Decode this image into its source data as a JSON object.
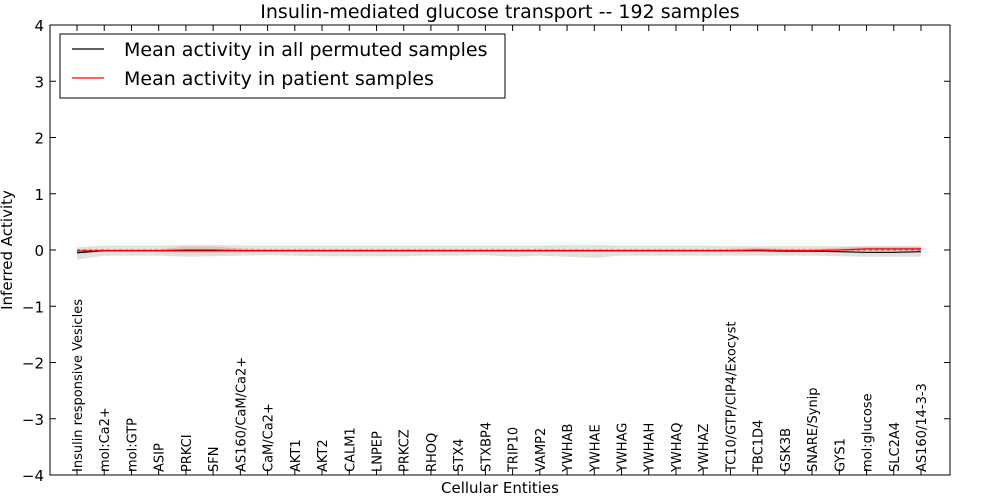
{
  "chart_data": {
    "type": "line",
    "title": "Insulin-mediated glucose transport -- 192 samples",
    "xlabel": "Cellular Entities",
    "ylabel": "Inferred Activity",
    "ylim": [
      -4,
      4
    ],
    "yticks": [
      "−4",
      "−3",
      "−2",
      "−1",
      "0",
      "1",
      "2",
      "3",
      "4"
    ],
    "grid": false,
    "legend_position": "top-left",
    "categories": [
      "Insulin responsive Vesicles",
      "mol:Ca2+",
      "mol:GTP",
      "ASIP",
      "PRKCI",
      "SFN",
      "AS160/CaM/Ca2+",
      "CaM/Ca2+",
      "AKT1",
      "AKT2",
      "CALM1",
      "LNPEP",
      "PRKCZ",
      "RHOQ",
      "STX4",
      "STXBP4",
      "TRIP10",
      "VAMP2",
      "YWHAB",
      "YWHAE",
      "YWHAG",
      "YWHAH",
      "YWHAQ",
      "YWHAZ",
      "TC10/GTP/CIP4/Exocyst",
      "TBC1D4",
      "GSK3B",
      "SNARE/Synip",
      "GYS1",
      "mol:glucose",
      "SLC2A4",
      "AS160/14-3-3"
    ],
    "series": [
      {
        "name": "Mean activity in all permuted samples",
        "color": "#000000",
        "values": [
          -0.05,
          -0.01,
          -0.01,
          -0.01,
          -0.01,
          -0.01,
          -0.01,
          -0.01,
          -0.01,
          -0.01,
          -0.01,
          -0.01,
          -0.01,
          -0.01,
          -0.01,
          -0.01,
          -0.01,
          -0.01,
          -0.01,
          -0.01,
          -0.01,
          -0.01,
          -0.01,
          -0.01,
          -0.01,
          -0.01,
          -0.02,
          -0.02,
          -0.03,
          -0.04,
          -0.04,
          -0.03
        ],
        "band_lower": [
          -0.17,
          -0.1,
          -0.1,
          -0.1,
          -0.12,
          -0.11,
          -0.1,
          -0.09,
          -0.1,
          -0.11,
          -0.11,
          -0.11,
          -0.11,
          -0.1,
          -0.1,
          -0.09,
          -0.12,
          -0.1,
          -0.12,
          -0.14,
          -0.1,
          -0.1,
          -0.1,
          -0.1,
          -0.1,
          -0.1,
          -0.1,
          -0.1,
          -0.11,
          -0.12,
          -0.12,
          -0.12
        ],
        "band_upper": [
          0.05,
          0.08,
          0.08,
          0.08,
          0.09,
          0.09,
          0.08,
          0.08,
          0.08,
          0.08,
          0.08,
          0.08,
          0.08,
          0.08,
          0.08,
          0.08,
          0.08,
          0.08,
          0.09,
          0.09,
          0.08,
          0.08,
          0.08,
          0.08,
          0.07,
          0.07,
          0.07,
          0.07,
          0.07,
          0.07,
          0.07,
          0.07
        ],
        "band_color": "#c8c8c8"
      },
      {
        "name": "Mean activity in patient samples",
        "color": "#ff0000",
        "values": [
          -0.02,
          -0.01,
          -0.01,
          -0.01,
          0.0,
          0.0,
          -0.01,
          -0.01,
          -0.01,
          -0.01,
          -0.01,
          -0.01,
          -0.01,
          -0.01,
          -0.01,
          -0.01,
          -0.01,
          -0.01,
          -0.01,
          -0.01,
          -0.01,
          -0.01,
          -0.01,
          -0.01,
          -0.01,
          0.0,
          -0.01,
          -0.01,
          0.0,
          0.02,
          0.02,
          0.02
        ],
        "band_lower": [
          -0.06,
          -0.03,
          -0.03,
          -0.03,
          -0.05,
          -0.05,
          -0.04,
          -0.03,
          -0.03,
          -0.03,
          -0.03,
          -0.03,
          -0.03,
          -0.03,
          -0.03,
          -0.03,
          -0.03,
          -0.03,
          -0.03,
          -0.03,
          -0.03,
          -0.03,
          -0.03,
          -0.03,
          -0.03,
          -0.03,
          -0.03,
          -0.03,
          -0.02,
          -0.01,
          -0.01,
          -0.01
        ],
        "band_upper": [
          0.02,
          0.01,
          0.01,
          0.01,
          0.06,
          0.06,
          0.03,
          0.01,
          0.01,
          0.01,
          0.01,
          0.01,
          0.01,
          0.01,
          0.01,
          0.01,
          0.01,
          0.01,
          0.01,
          0.01,
          0.01,
          0.01,
          0.01,
          0.01,
          0.02,
          0.04,
          0.02,
          0.02,
          0.04,
          0.06,
          0.06,
          0.06
        ],
        "band_color": "#f4a0a0"
      }
    ]
  }
}
